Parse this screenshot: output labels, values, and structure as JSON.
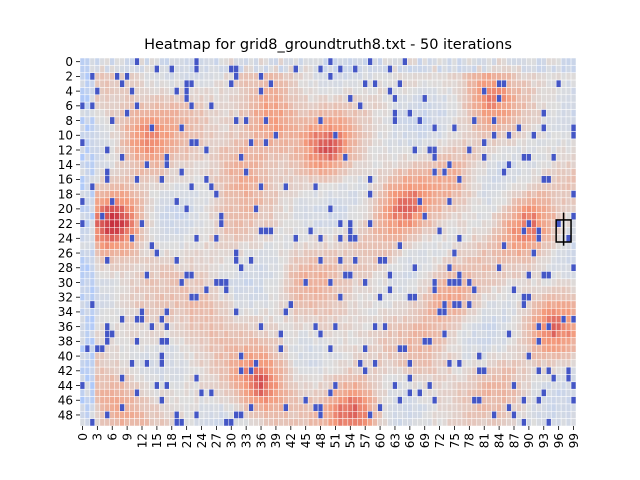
{
  "chart_data": {
    "type": "heatmap",
    "title": "Heatmap for grid8_groundtruth8.txt - 50 iterations",
    "xlabel": "",
    "ylabel": "",
    "rows": 50,
    "cols": 100,
    "x_tick_labels": [
      "0",
      "3",
      "6",
      "9",
      "12",
      "15",
      "18",
      "21",
      "24",
      "27",
      "30",
      "33",
      "36",
      "39",
      "42",
      "45",
      "48",
      "51",
      "54",
      "57",
      "60",
      "63",
      "66",
      "69",
      "72",
      "75",
      "78",
      "81",
      "84",
      "87",
      "90",
      "93",
      "96",
      "99"
    ],
    "y_tick_labels": [
      "0",
      "2",
      "4",
      "6",
      "8",
      "10",
      "12",
      "14",
      "16",
      "18",
      "20",
      "22",
      "24",
      "26",
      "28",
      "30",
      "32",
      "34",
      "36",
      "38",
      "40",
      "42",
      "44",
      "46",
      "48"
    ],
    "colormap": "coolwarm",
    "colors": {
      "cold_min": "#3b4cc0",
      "mid": "#dddddd",
      "warm_max": "#b40426",
      "cell_border": "#ffffff",
      "marker": "#000000"
    },
    "color_range": [
      0,
      1
    ],
    "grid": false,
    "legend": "none",
    "hot_spots": [
      {
        "row": 22,
        "col": 7,
        "value": 0.9
      },
      {
        "row": 10,
        "col": 12,
        "value": 0.75
      },
      {
        "row": 8,
        "col": 38,
        "value": 0.8
      },
      {
        "row": 12,
        "col": 49,
        "value": 0.8
      },
      {
        "row": 4,
        "col": 82,
        "value": 0.75
      },
      {
        "row": 20,
        "col": 65,
        "value": 0.75
      },
      {
        "row": 22,
        "col": 90,
        "value": 0.8
      },
      {
        "row": 44,
        "col": 36,
        "value": 0.85
      },
      {
        "row": 48,
        "col": 55,
        "value": 0.85
      },
      {
        "row": 36,
        "col": 95,
        "value": 0.75
      },
      {
        "row": 32,
        "col": 74,
        "value": 0.7
      },
      {
        "row": 46,
        "col": 7,
        "value": 0.7
      },
      {
        "row": 14,
        "col": 32,
        "value": 0.7
      },
      {
        "row": 34,
        "col": 25,
        "value": 0.65
      },
      {
        "row": 26,
        "col": 60,
        "value": 0.6
      },
      {
        "row": 40,
        "col": 70,
        "value": 0.6
      },
      {
        "row": 30,
        "col": 45,
        "value": 0.6
      },
      {
        "row": 6,
        "col": 20,
        "value": 0.6
      },
      {
        "row": 16,
        "col": 75,
        "value": 0.65
      },
      {
        "row": 38,
        "col": 15,
        "value": 0.55
      },
      {
        "row": 44,
        "col": 85,
        "value": 0.6
      },
      {
        "row": 24,
        "col": 30,
        "value": 0.55
      },
      {
        "row": 2,
        "col": 60,
        "value": 0.5
      },
      {
        "row": 36,
        "col": 50,
        "value": 0.6
      }
    ],
    "cold_region": {
      "col_end": 2,
      "value": 0.3
    },
    "marker_cell": {
      "row": 23,
      "col": 97
    }
  }
}
